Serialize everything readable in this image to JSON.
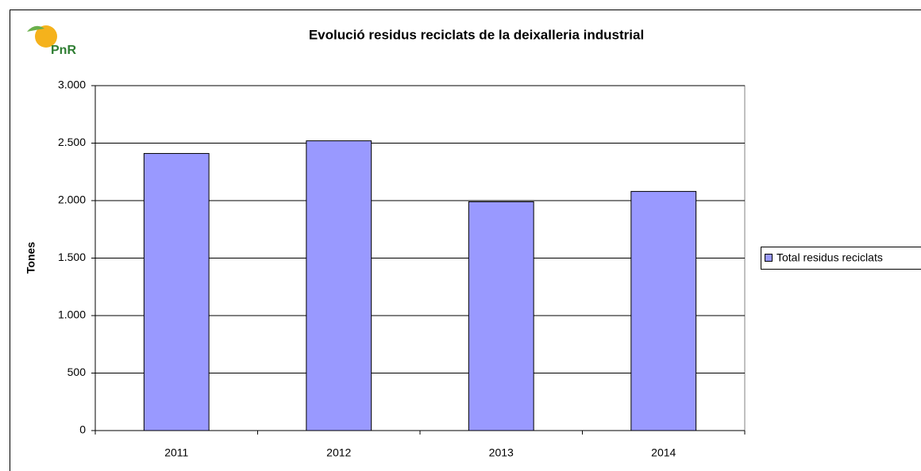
{
  "logo": "PnR",
  "chart_data": {
    "type": "bar",
    "title": "Evolució residus reciclats de la deixalleria industrial",
    "y_label": "Tones",
    "categories": [
      "2011",
      "2012",
      "2013",
      "2014"
    ],
    "series": [
      {
        "name": "Total residus reciclats",
        "color": "#9999ff",
        "values": [
          2410,
          2520,
          1990,
          2080
        ]
      }
    ],
    "ylim": [
      0,
      3000
    ],
    "yticks": [
      0,
      500,
      {
        "value": 1000,
        "label": "1.000"
      },
      {
        "value": 1500,
        "label": "1.500"
      },
      {
        "value": 2000,
        "label": "2.000"
      },
      {
        "value": 2500,
        "label": "2.500"
      },
      {
        "value": 3000,
        "label": "3.000"
      }
    ],
    "grid": true,
    "legend": "right"
  }
}
